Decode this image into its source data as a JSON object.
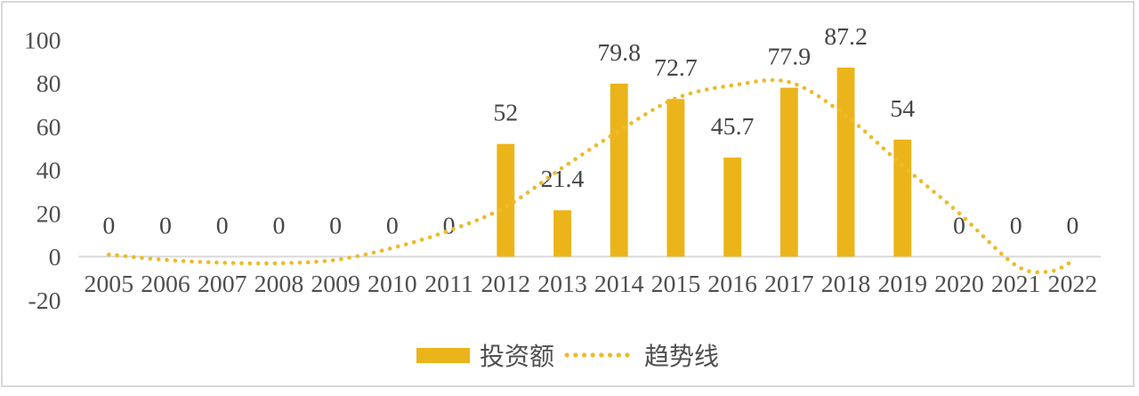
{
  "panel": {
    "background": "#ffffff",
    "border_color": "#d8d8d8"
  },
  "chart_data": {
    "type": "bar",
    "title": "",
    "xlabel": "",
    "ylabel": "",
    "categories": [
      "2005",
      "2006",
      "2007",
      "2008",
      "2009",
      "2010",
      "2011",
      "2012",
      "2013",
      "2014",
      "2015",
      "2016",
      "2017",
      "2018",
      "2019",
      "2020",
      "2021",
      "2022"
    ],
    "series": [
      {
        "name": "投资额",
        "type": "bar",
        "color": "#EBB41B",
        "values": [
          0,
          0,
          0,
          0,
          0,
          0,
          0,
          52,
          21.4,
          79.8,
          72.7,
          45.7,
          77.9,
          87.2,
          54,
          0,
          0,
          0
        ],
        "data_labels": [
          "0",
          "0",
          "0",
          "0",
          "0",
          "0",
          "0",
          "52",
          "21.4",
          "79.8",
          "72.7",
          "45.7",
          "77.9",
          "87.2",
          "54",
          "0",
          "0",
          "0"
        ]
      },
      {
        "name": "趋势线",
        "type": "dotted_trendline",
        "color": "#ECBB2C",
        "points": [
          [
            2005,
            1
          ],
          [
            2006,
            -1.5
          ],
          [
            2007,
            -2.8
          ],
          [
            2008,
            -3
          ],
          [
            2009,
            -1.5
          ],
          [
            2010,
            4
          ],
          [
            2011,
            12
          ],
          [
            2012,
            23
          ],
          [
            2013,
            41
          ],
          [
            2014,
            58
          ],
          [
            2015,
            73
          ],
          [
            2016,
            79
          ],
          [
            2017,
            80.5
          ],
          [
            2018,
            65
          ],
          [
            2019,
            42
          ],
          [
            2020,
            20
          ],
          [
            2021,
            -4
          ],
          [
            2021.6,
            -6.8
          ],
          [
            2022,
            -2
          ]
        ]
      }
    ],
    "y_ticks": [
      "100",
      "80",
      "60",
      "40",
      "20",
      "0",
      "-20"
    ],
    "y_tick_values": [
      100,
      80,
      60,
      40,
      20,
      0,
      -20
    ],
    "ylim": [
      -20,
      100
    ],
    "grid": false,
    "legend_position": "bottom",
    "colors": {
      "axis_line": "#d9d9d9",
      "tick_label": "#4f4f4f",
      "data_label": "#454545"
    }
  },
  "legend": {
    "items": [
      {
        "label": "投资额",
        "swatch": "bar"
      },
      {
        "label": "趋势线",
        "swatch": "dotted-line"
      }
    ]
  }
}
